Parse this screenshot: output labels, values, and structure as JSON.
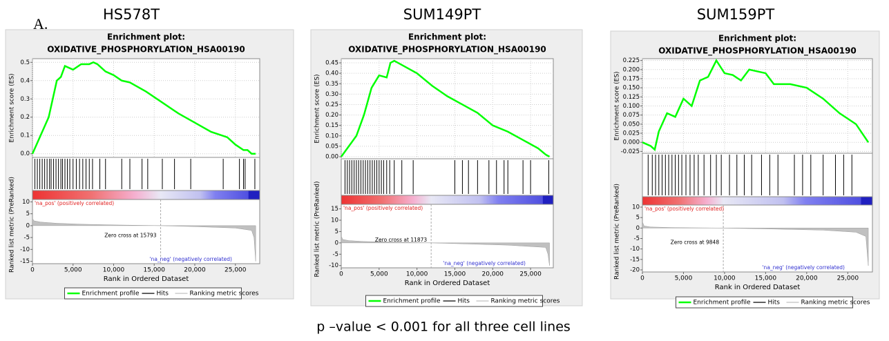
{
  "figure_label": "A.",
  "footnote": "p –value < 0.001 for all three cell lines",
  "chart_data": [
    {
      "type": "gsea",
      "panel_label": "HS578T",
      "title": [
        "Enrichment plot:",
        "OXIDATIVE_PHOSPHORYLATION_HSA00190"
      ],
      "ylabel": "Enrichment score (ES)",
      "y2label": "Ranked list metric (PreRanked)",
      "xlabel": "Rank in Ordered Dataset",
      "xlim": [
        0,
        28000
      ],
      "xticks": [
        0,
        {
          "value": 5000,
          "label": "5,000"
        },
        {
          "value": 10000,
          "label": "10,000"
        },
        {
          "value": 15000,
          "label": "15,000"
        },
        {
          "value": 20000,
          "label": "20,000"
        },
        {
          "value": 25000,
          "label": "25,000"
        }
      ],
      "ylim": [
        -0.02,
        0.52
      ],
      "yticks": [
        {
          "value": 0,
          "label": "0.0"
        },
        0.1,
        0.2,
        0.3,
        0.4,
        0.5
      ],
      "y2lim": [
        -16,
        11
      ],
      "y2ticks": [
        10,
        5,
        0,
        -5,
        -10,
        -15
      ],
      "grid": true,
      "series": [
        {
          "name": "Enrichment profile",
          "color": "#00ff00",
          "x": [
            0,
            500,
            1000,
            1500,
            2000,
            2500,
            3000,
            3500,
            4000,
            5000,
            6000,
            7000,
            7500,
            8000,
            9000,
            10000,
            11000,
            12000,
            14000,
            16000,
            18000,
            20000,
            22000,
            24000,
            25000,
            26000,
            26500,
            27000,
            27500
          ],
          "values": [
            0,
            0.05,
            0.1,
            0.15,
            0.2,
            0.3,
            0.4,
            0.42,
            0.48,
            0.46,
            0.49,
            0.49,
            0.5,
            0.49,
            0.45,
            0.43,
            0.4,
            0.39,
            0.34,
            0.28,
            0.22,
            0.17,
            0.12,
            0.09,
            0.05,
            0.02,
            0.02,
            0,
            0
          ]
        },
        {
          "name": "Hits",
          "color": "#000000",
          "x": [
            300,
            600,
            900,
            1200,
            1500,
            1800,
            2100,
            2300,
            2600,
            2900,
            3200,
            3500,
            3700,
            4000,
            4300,
            4600,
            5000,
            5400,
            5800,
            6200,
            6600,
            7000,
            7400,
            8300,
            9000,
            11000,
            12000,
            13500,
            14200,
            16000,
            17500,
            19500,
            23500,
            25500,
            26000,
            26200,
            27400
          ]
        },
        {
          "name": "Ranking metric scores",
          "color": "#c0c0c0",
          "axis": "y2",
          "x": [
            0,
            200,
            1000,
            3000,
            6000,
            10000,
            15793,
            20000,
            25000,
            27000,
            27300,
            27500
          ],
          "values": [
            3,
            2,
            1.5,
            1,
            0.6,
            0.3,
            0,
            -0.4,
            -1,
            -2,
            -5,
            -15
          ]
        }
      ],
      "pos_label": "'na_pos' (positively correlated)",
      "neg_label": "'na_neg' (negatively correlated)",
      "zero_cross_label": "Zero cross at",
      "zero_cross": 15793
    },
    {
      "type": "gsea",
      "panel_label": "SUM149PT",
      "title": [
        "Enrichment plot:",
        "OXIDATIVE_PHOSPHORYLATION_HSA00190"
      ],
      "ylabel": "Enrichment score (ES)",
      "y2label": "Ranked list metric (PreRanked)",
      "xlabel": "Rank in Ordered Dataset",
      "xlim": [
        0,
        28000
      ],
      "xticks": [
        0,
        {
          "value": 5000,
          "label": "5,000"
        },
        {
          "value": 10000,
          "label": "10,000"
        },
        {
          "value": 15000,
          "label": "15,000"
        },
        {
          "value": 20000,
          "label": "20,000"
        },
        {
          "value": 25000,
          "label": "25,000"
        }
      ],
      "ylim": [
        -0.01,
        0.47
      ],
      "yticks": [
        {
          "value": 0,
          "label": "0.00"
        },
        0.05,
        {
          "value": 0.1,
          "label": "0.10"
        },
        0.15,
        {
          "value": 0.2,
          "label": "0.20"
        },
        0.25,
        {
          "value": 0.3,
          "label": "0.30"
        },
        0.35,
        {
          "value": 0.4,
          "label": "0.40"
        },
        0.45
      ],
      "y2lim": [
        -11,
        17
      ],
      "y2ticks": [
        15,
        10,
        5,
        0,
        -5,
        -10
      ],
      "grid": true,
      "series": [
        {
          "name": "Enrichment profile",
          "color": "#00ff00",
          "x": [
            0,
            1000,
            2000,
            3000,
            4000,
            5000,
            6000,
            6500,
            7000,
            8000,
            10000,
            12000,
            14000,
            16000,
            18000,
            20000,
            22000,
            24000,
            26000,
            27000,
            27500
          ],
          "values": [
            0,
            0.05,
            0.1,
            0.2,
            0.33,
            0.39,
            0.38,
            0.45,
            0.46,
            0.44,
            0.4,
            0.34,
            0.29,
            0.25,
            0.21,
            0.15,
            0.12,
            0.08,
            0.04,
            0.01,
            0
          ]
        },
        {
          "name": "Hits",
          "color": "#000000",
          "x": [
            500,
            800,
            1100,
            1400,
            1700,
            2000,
            2300,
            2600,
            2900,
            3200,
            3500,
            3800,
            4100,
            4400,
            4700,
            5000,
            5300,
            5600,
            6000,
            6400,
            7000,
            8000,
            9500,
            15000,
            16000,
            16800,
            18000,
            19500,
            20500,
            21500,
            22000,
            24000,
            25000,
            27400
          ]
        },
        {
          "name": "Ranking metric scores",
          "color": "#c0c0c0",
          "axis": "y2",
          "x": [
            0,
            200,
            1000,
            3000,
            7000,
            11873,
            16000,
            22000,
            27000,
            27300,
            27500
          ],
          "values": [
            3,
            1.5,
            1,
            0.6,
            0.3,
            0,
            -0.4,
            -1,
            -2,
            -5,
            -10
          ]
        }
      ],
      "pos_label": "'na_pos' (positively correlated)",
      "neg_label": "'na_neg' (negatively correlated)",
      "zero_cross_label": "Zero cross at",
      "zero_cross": 11873
    },
    {
      "type": "gsea",
      "panel_label": "SUM159PT",
      "title": [
        "Enrichment plot:",
        "OXIDATIVE_PHOSPHORYLATION_HSA00190"
      ],
      "ylabel": "Enrichment score (ES)",
      "y2label": "Ranked list metric (PreRanked)",
      "xlabel": "Rank in Ordered Dataset",
      "xlim": [
        0,
        28000
      ],
      "xticks": [
        0,
        {
          "value": 5000,
          "label": "5,000"
        },
        {
          "value": 10000,
          "label": "10,000"
        },
        {
          "value": 15000,
          "label": "15,000"
        },
        {
          "value": 20000,
          "label": "20,000"
        },
        {
          "value": 25000,
          "label": "25,000"
        }
      ],
      "ylim": [
        -0.03,
        0.23
      ],
      "yticks": [
        -0.025,
        {
          "value": 0,
          "label": "0.000"
        },
        0.025,
        {
          "value": 0.05,
          "label": "0.050"
        },
        0.075,
        {
          "value": 0.1,
          "label": "0.100"
        },
        0.125,
        {
          "value": 0.15,
          "label": "0.150"
        },
        0.175,
        {
          "value": 0.2,
          "label": "0.200"
        },
        0.225
      ],
      "y2lim": [
        -21,
        11
      ],
      "y2ticks": [
        10,
        5,
        0,
        -5,
        -10,
        -15,
        -20
      ],
      "grid": true,
      "series": [
        {
          "name": "Enrichment profile",
          "color": "#00ff00",
          "x": [
            0,
            1000,
            1500,
            2000,
            3000,
            4000,
            5000,
            6000,
            7000,
            8000,
            9000,
            10000,
            11000,
            12000,
            13000,
            14000,
            15000,
            16000,
            18000,
            20000,
            22000,
            24000,
            26000,
            27500
          ],
          "values": [
            0,
            -0.01,
            -0.02,
            0.03,
            0.08,
            0.07,
            0.12,
            0.1,
            0.17,
            0.18,
            0.225,
            0.19,
            0.185,
            0.17,
            0.2,
            0.195,
            0.19,
            0.16,
            0.16,
            0.15,
            0.12,
            0.08,
            0.05,
            0
          ]
        },
        {
          "name": "Hits",
          "color": "#000000",
          "x": [
            700,
            1200,
            1600,
            2000,
            2400,
            2800,
            3200,
            3600,
            4000,
            4400,
            4800,
            5300,
            5800,
            6300,
            6800,
            7500,
            8300,
            9000,
            9600,
            10600,
            11500,
            12400,
            13300,
            14500,
            15500,
            16500,
            18500,
            19500,
            20500,
            22000,
            23500,
            24500,
            25500
          ]
        },
        {
          "name": "Ranking metric scores",
          "color": "#c0c0c0",
          "axis": "y2",
          "x": [
            0,
            200,
            1000,
            4000,
            9848,
            15000,
            22000,
            26000,
            27200,
            27500
          ],
          "values": [
            3,
            1,
            0.5,
            0.2,
            0,
            -0.4,
            -1,
            -2,
            -4,
            -18
          ]
        }
      ],
      "pos_label": "'na_pos' (positively correlated)",
      "neg_label": "'na_neg' (negatively correlated)",
      "zero_cross_label": "Zero cross at",
      "zero_cross": 9848
    }
  ]
}
